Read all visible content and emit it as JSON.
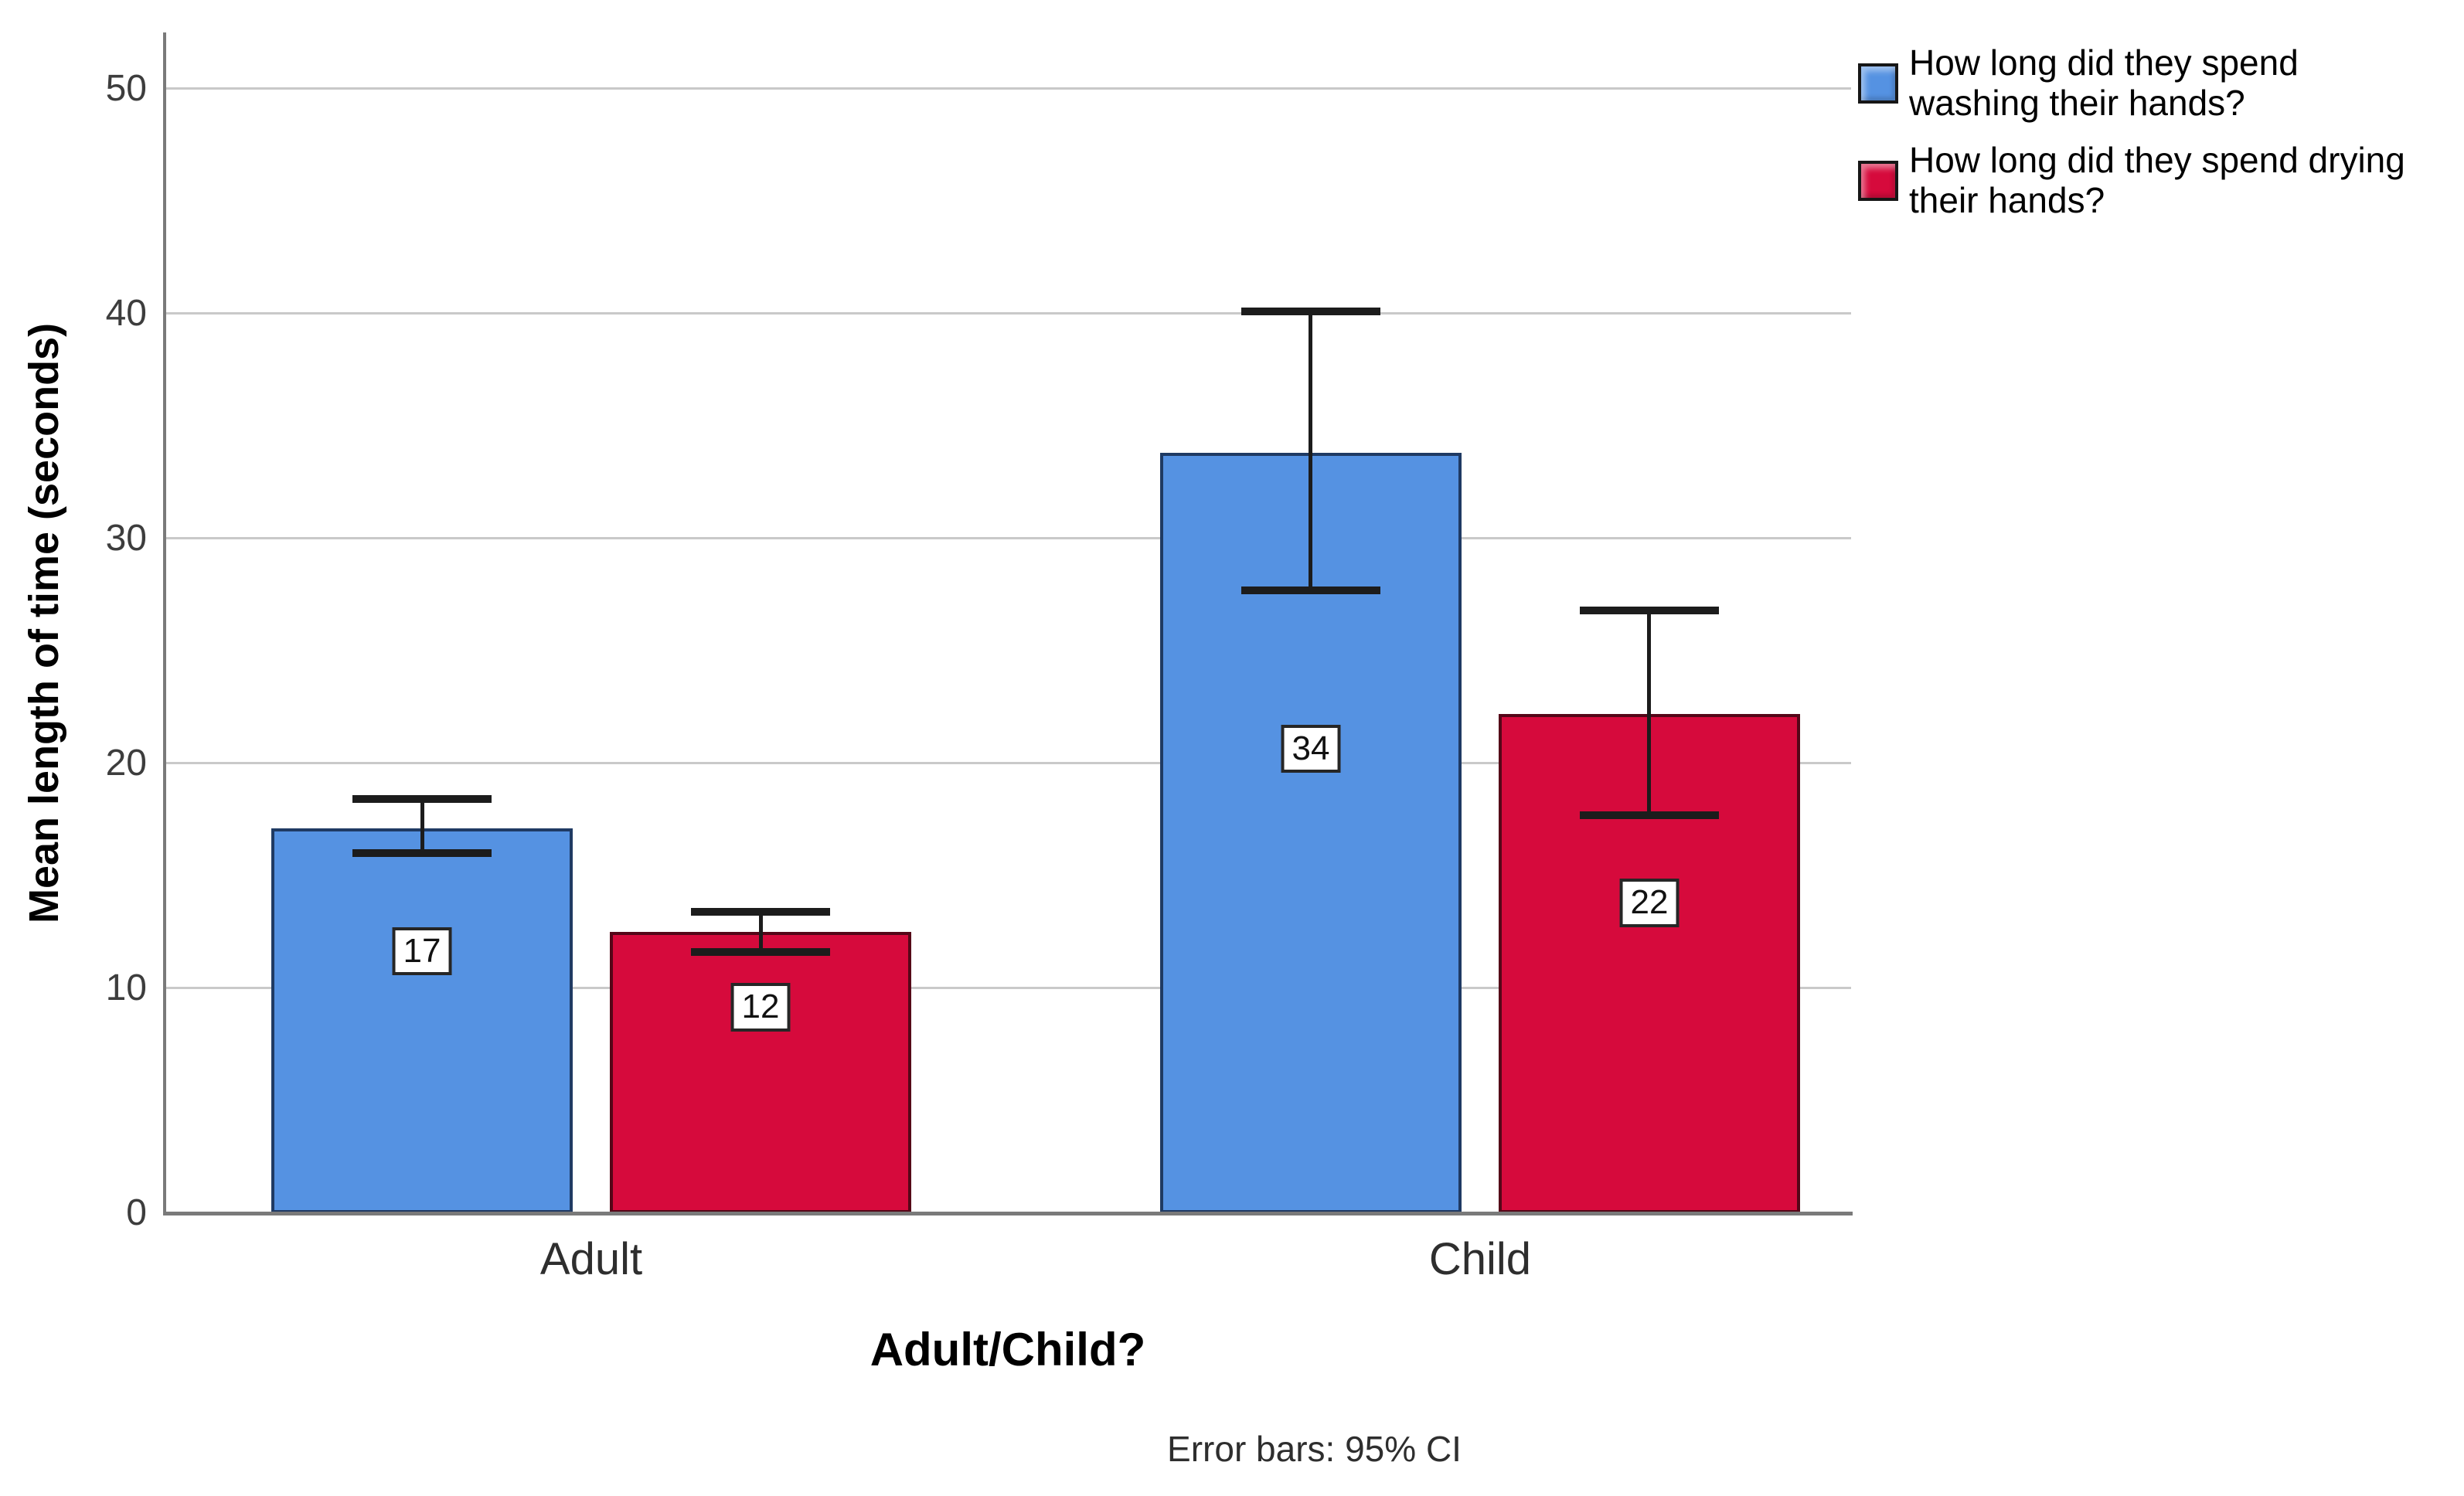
{
  "figure": {
    "background": "#ffffff"
  },
  "footnote": "Error bars: 95% CI",
  "legend": {
    "items": [
      {
        "color": "#5592E2",
        "border": "#1F3A63",
        "lines": [
          "How long did they spend",
          "washing their hands?"
        ]
      },
      {
        "color": "#D60A3C",
        "border": "#550618",
        "lines": [
          "How long did they spend drying",
          "their hands?"
        ]
      }
    ]
  },
  "chart_data": {
    "type": "bar",
    "title": "",
    "xlabel": "Adult/Child?",
    "ylabel": "Mean length of time (seconds)",
    "categories": [
      "Adult",
      "Child"
    ],
    "series": [
      {
        "name": "How long did they spend washing their hands?",
        "color": "#5592E2",
        "border_color": "#1F3A63",
        "values": [
          17.1,
          33.8
        ],
        "bar_labels": [
          "17",
          "34"
        ],
        "ci_low": [
          16.0,
          27.7
        ],
        "ci_high": [
          18.4,
          40.1
        ]
      },
      {
        "name": "How long did they spend drying their hands?",
        "color": "#D60A3C",
        "border_color": "#550618",
        "values": [
          12.5,
          22.2
        ],
        "bar_labels": [
          "12",
          "22"
        ],
        "ci_low": [
          11.6,
          17.7
        ],
        "ci_high": [
          13.4,
          26.8
        ]
      }
    ],
    "ylim": [
      0,
      52.5
    ],
    "yticks": [
      0,
      10,
      20,
      30,
      40,
      50
    ],
    "grid": "horizontal",
    "legend_position": "top-right",
    "error_bars": "95% CI",
    "label_offset_pct": [
      [
        32,
        39
      ],
      [
        27,
        38
      ]
    ]
  }
}
